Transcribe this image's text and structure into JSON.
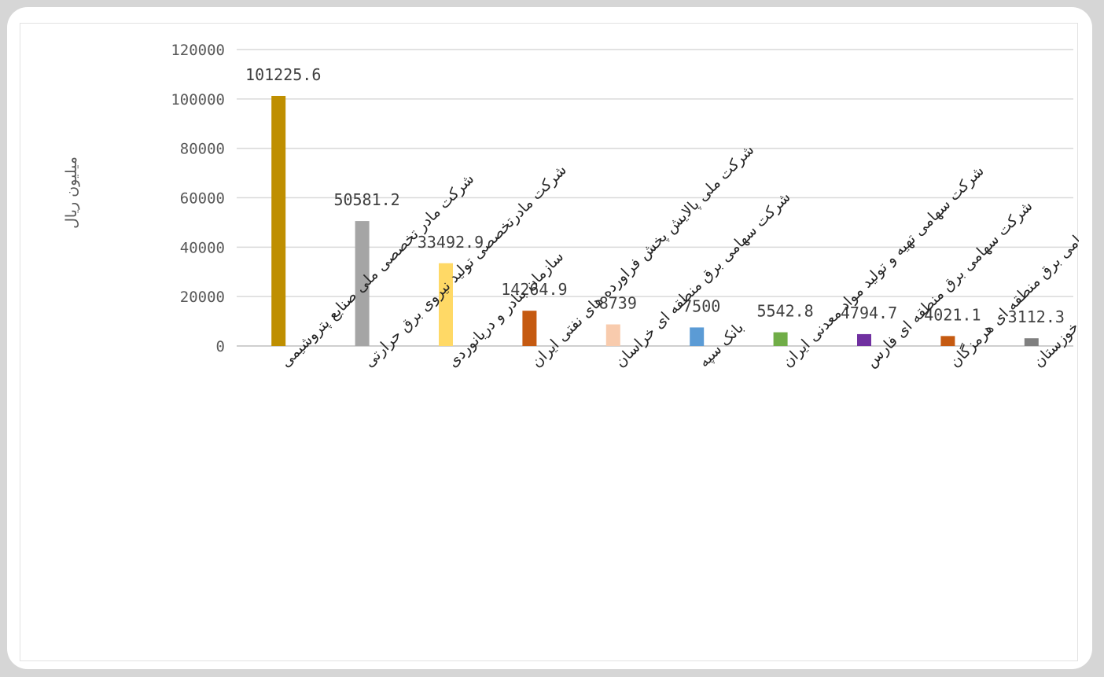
{
  "chart_data": {
    "type": "bar",
    "title": "",
    "xlabel": "",
    "ylabel": "میلیون ریال",
    "ylim": [
      0,
      120000
    ],
    "yticks": [
      0,
      20000,
      40000,
      60000,
      80000,
      100000,
      120000
    ],
    "grid": true,
    "legend": "none",
    "categories": [
      "شرکت مادر تخصصی ملی صنایع پتروشیمی",
      "شرکت مادرتخصصی تولید نیروی برق حرارتی",
      "سازمان بنادر و دریانوردی",
      "شرکت ملی پالایش پخش فراورده های نفتی ایران",
      "شرکت سهامی برق منطقه ای خراسان",
      "بانک سپه",
      "شرکت سهامی تهیه و تولید مواد معدنی ایران",
      "شرکت سهامی برق منطقه ای فارس",
      "شرکت سهامی برق منطقه ای هرمزگان",
      "شرکت سهامی برق منطقه ای خوزستان"
    ],
    "values": [
      101225.6,
      50581.2,
      33492.9,
      14264.9,
      8739,
      7500,
      5542.8,
      4794.7,
      4021.1,
      3112.3
    ],
    "value_labels": [
      "101225.6",
      "50581.2",
      "33492.9",
      "14264.9",
      "8739",
      "7500",
      "5542.8",
      "4794.7",
      "4021.1",
      "3112.3"
    ],
    "colors": [
      "#bf8f00",
      "#a5a5a5",
      "#ffd966",
      "#c55a11",
      "#f8cbad",
      "#5b9bd5",
      "#70ad47",
      "#7030a0",
      "#c55a11",
      "#7f7f7f"
    ]
  }
}
